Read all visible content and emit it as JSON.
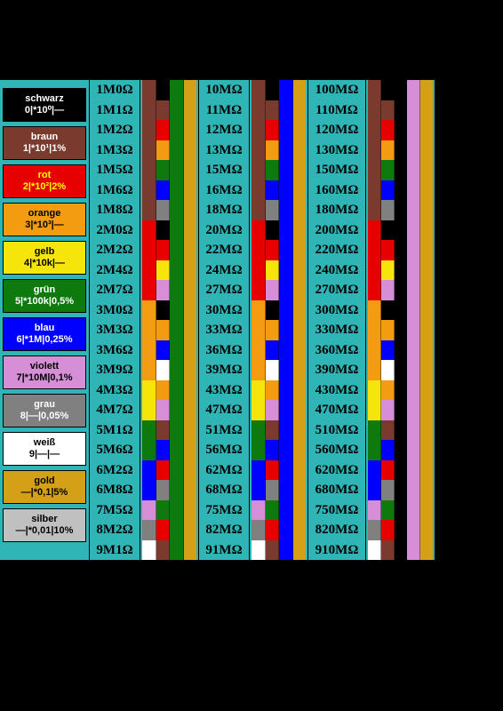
{
  "digitColors": [
    "#000000",
    "#7a3b2e",
    "#e60000",
    "#f39c12",
    "#f5e50a",
    "#0e7a0e",
    "#0000ff",
    "#d68fd6",
    "#808080",
    "#ffffff"
  ],
  "gold": "#d4a017",
  "silver": "#c0c0c0",
  "body": "#2fb5b5",
  "textOnColor": [
    "#ffffff",
    "#ffffff",
    "#ffff00",
    "#000000",
    "#000000",
    "#ffffff",
    "#ffffff",
    "#000000",
    "#ffffff",
    "#000000"
  ],
  "legend": [
    {
      "name": "schwarz",
      "code": "0|*10⁰|—",
      "i": 0
    },
    {
      "name": "braun",
      "code": "1|*10¹|1%",
      "i": 1
    },
    {
      "name": "rot",
      "code": "2|*10²|2%",
      "i": 2
    },
    {
      "name": "orange",
      "code": "3|*10³|—",
      "i": 3
    },
    {
      "name": "gelb",
      "code": "4|*10k|—",
      "i": 4
    },
    {
      "name": "grün",
      "code": "5|*100k|0,5%",
      "i": 5
    },
    {
      "name": "blau",
      "code": "6|*1M|0,25%",
      "i": 6
    },
    {
      "name": "violett",
      "code": "7|*10M|0,1%",
      "i": 7
    },
    {
      "name": "grau",
      "code": "8|—|0,05%",
      "i": 8
    },
    {
      "name": "weiß",
      "code": "9|—|—",
      "i": 9
    },
    {
      "name": "gold",
      "code": "—|*0,1|5%",
      "i": -1
    },
    {
      "name": "silber",
      "code": "—|*0,01|10%",
      "i": -2
    }
  ],
  "e24": [
    10,
    11,
    12,
    13,
    15,
    16,
    18,
    20,
    22,
    24,
    27,
    30,
    33,
    36,
    39,
    43,
    47,
    51,
    56,
    62,
    68,
    75,
    82,
    91
  ],
  "decades": [
    {
      "mult": 5,
      "prefix": "1M",
      "digits": 1,
      "c5": false
    },
    {
      "mult": 6,
      "prefix": "M",
      "digits": 2,
      "c5": false
    },
    {
      "mult": 7,
      "prefix": "0M",
      "digits": 2,
      "c5": true
    }
  ]
}
